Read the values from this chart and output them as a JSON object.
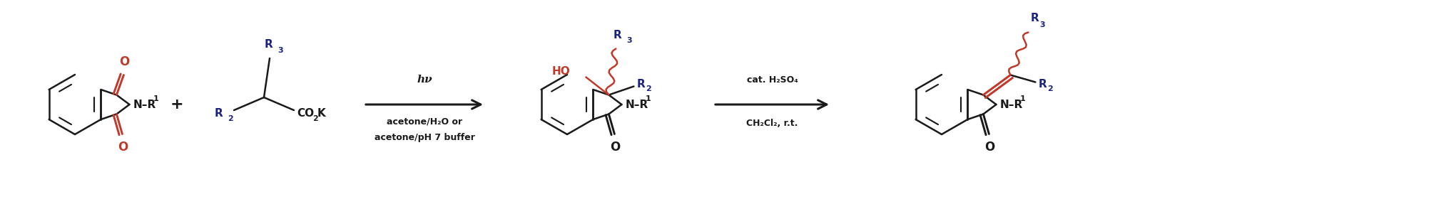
{
  "figure_width": 20.27,
  "figure_height": 2.94,
  "dpi": 100,
  "background": "#ffffff",
  "bond_color": "#1a1a1a",
  "carbonyl_color": "#c0392b",
  "R_color": "#1a237e",
  "HO_color": "#c0392b",
  "wavy_color": "#c0392b",
  "condition1_hv": "hν",
  "condition1_line2": "acetone/H₂O or",
  "condition1_line3": "acetone/pH 7 buffer",
  "condition2_line1": "cat. H₂SO₄",
  "condition2_line2": "CH₂Cl₂, r.t."
}
